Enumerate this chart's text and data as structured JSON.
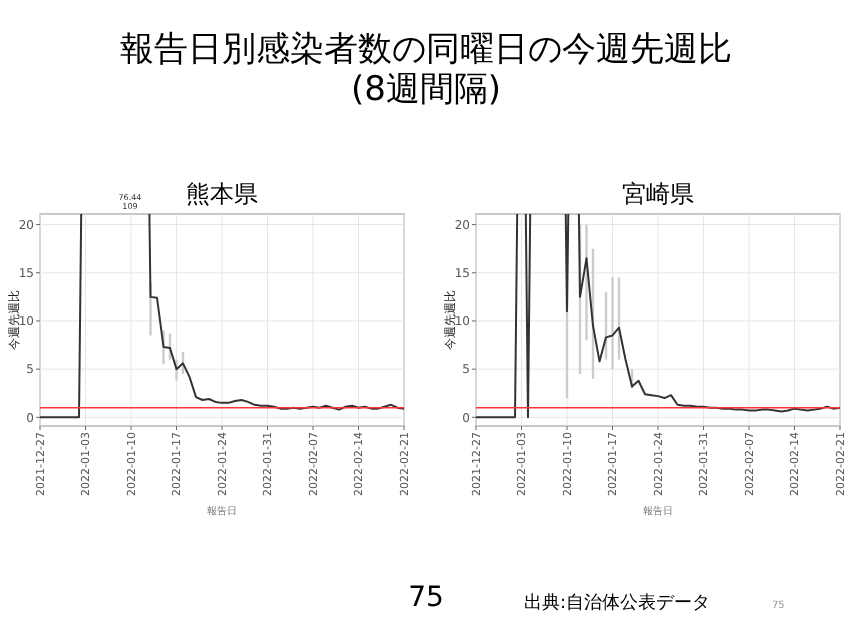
{
  "chart_data": [
    {
      "type": "other",
      "title": "報告日別感染者数の同曜日の今週先週比\n(8週間隔)",
      "annotations": [
        "75",
        "出典:自治体公表データ",
        "75"
      ]
    },
    {
      "type": "line",
      "title": "熊本県",
      "xlabel": "報告日",
      "ylabel": "今週先週比",
      "grid": true,
      "x": [
        "2021-12-27",
        "2021-12-28",
        "2021-12-29",
        "2021-12-30",
        "2021-12-31",
        "2022-01-01",
        "2022-01-02",
        "2022-01-03",
        "2022-01-04",
        "2022-01-05",
        "2022-01-06",
        "2022-01-07",
        "2022-01-08",
        "2022-01-09",
        "2022-01-10",
        "2022-01-11",
        "2022-01-12",
        "2022-01-13",
        "2022-01-14",
        "2022-01-15",
        "2022-01-16",
        "2022-01-17",
        "2022-01-18",
        "2022-01-19",
        "2022-01-20",
        "2022-01-21",
        "2022-01-22",
        "2022-01-23",
        "2022-01-24",
        "2022-01-25",
        "2022-01-26",
        "2022-01-27",
        "2022-01-28",
        "2022-01-29",
        "2022-01-30",
        "2022-01-31",
        "2022-02-01",
        "2022-02-02",
        "2022-02-03",
        "2022-02-04",
        "2022-02-05",
        "2022-02-06",
        "2022-02-07",
        "2022-02-08",
        "2022-02-09",
        "2022-02-10",
        "2022-02-11",
        "2022-02-12",
        "2022-02-13",
        "2022-02-14",
        "2022-02-15",
        "2022-02-16",
        "2022-02-17",
        "2022-02-18",
        "2022-02-19",
        "2022-02-20",
        "2022-02-21"
      ],
      "series": [
        {
          "color": "#333333",
          "values": [
            0,
            0,
            0,
            0,
            0,
            0,
            0,
            null,
            null,
            null,
            null,
            null,
            null,
            null,
            null,
            null,
            null,
            12.5,
            12.4,
            7.3,
            7.2,
            5.0,
            5.6,
            4.2,
            2.1,
            1.8,
            1.9,
            1.6,
            1.5,
            1.5,
            1.7,
            1.8,
            1.6,
            1.3,
            1.2,
            1.2,
            1.1,
            0.9,
            0.9,
            1.0,
            0.9,
            1.0,
            1.1,
            1.0,
            1.2,
            1.0,
            0.8,
            1.1,
            1.2,
            1.0,
            1.1,
            0.9,
            0.9,
            1.1,
            1.3,
            1.0,
            0.9
          ],
          "errors": [
            null,
            null,
            null,
            null,
            null,
            null,
            null,
            null,
            null,
            null,
            null,
            null,
            null,
            null,
            null,
            null,
            null,
            [
              8.5,
              14
            ],
            null,
            [
              5.5,
              9
            ],
            [
              6,
              8.7
            ],
            [
              3.8,
              6
            ],
            [
              4.5,
              6.8
            ],
            null,
            null,
            null,
            null,
            null,
            null,
            null,
            null,
            null,
            null,
            null,
            null,
            null,
            null,
            null,
            null,
            null,
            null,
            null,
            null,
            null,
            null,
            null,
            null,
            null,
            null,
            null,
            null,
            null,
            null,
            null,
            null,
            null,
            null
          ]
        }
      ],
      "xlim": [
        "2021-12-27",
        "2022-02-21"
      ],
      "xticks": [
        "2021-12-27",
        "2022-01-03",
        "2022-01-10",
        "2022-01-17",
        "2022-01-24",
        "2022-01-31",
        "2022-02-07",
        "2022-02-14",
        "2022-02-21"
      ],
      "ylim": [
        -0.9,
        21.1
      ],
      "yticks": [
        0,
        5,
        10,
        15,
        20
      ],
      "ref_lines": [
        {
          "axis": "y",
          "value": 1,
          "color": "#ff3333"
        }
      ],
      "annotations": [
        "76.44",
        "109"
      ]
    },
    {
      "type": "line",
      "title": "宮崎県",
      "xlabel": "報告日",
      "ylabel": "今週先週比",
      "grid": true,
      "x": [
        "2021-12-27",
        "2021-12-28",
        "2021-12-29",
        "2021-12-30",
        "2021-12-31",
        "2022-01-01",
        "2022-01-02",
        "2022-01-03",
        "2022-01-04",
        "2022-01-05",
        "2022-01-06",
        "2022-01-07",
        "2022-01-08",
        "2022-01-09",
        "2022-01-10",
        "2022-01-11",
        "2022-01-12",
        "2022-01-13",
        "2022-01-14",
        "2022-01-15",
        "2022-01-16",
        "2022-01-17",
        "2022-01-18",
        "2022-01-19",
        "2022-01-20",
        "2022-01-21",
        "2022-01-22",
        "2022-01-23",
        "2022-01-24",
        "2022-01-25",
        "2022-01-26",
        "2022-01-27",
        "2022-01-28",
        "2022-01-29",
        "2022-01-30",
        "2022-01-31",
        "2022-02-01",
        "2022-02-02",
        "2022-02-03",
        "2022-02-04",
        "2022-02-05",
        "2022-02-06",
        "2022-02-07",
        "2022-02-08",
        "2022-02-09",
        "2022-02-10",
        "2022-02-11",
        "2022-02-12",
        "2022-02-13",
        "2022-02-14",
        "2022-02-15",
        "2022-02-16",
        "2022-02-17",
        "2022-02-18",
        "2022-02-19",
        "2022-02-20",
        "2022-02-21"
      ],
      "series": [
        {
          "color": "#333333",
          "values": [
            0,
            0,
            0,
            0,
            0,
            0,
            0,
            null,
            0,
            null,
            null,
            null,
            null,
            null,
            11,
            null,
            12.5,
            16.5,
            9.5,
            5.8,
            8.3,
            8.5,
            9.3,
            6,
            3.2,
            3.8,
            2.4,
            2.3,
            2.2,
            2.0,
            2.3,
            1.3,
            1.2,
            1.2,
            1.1,
            1.1,
            1.0,
            1.0,
            0.9,
            0.9,
            0.8,
            0.8,
            0.7,
            0.7,
            0.8,
            0.8,
            0.7,
            0.6,
            0.7,
            0.9,
            0.8,
            0.7,
            0.8,
            0.9,
            1.1,
            0.9,
            1.0
          ],
          "errors": [
            null,
            null,
            null,
            null,
            null,
            null,
            null,
            null,
            null,
            null,
            null,
            null,
            null,
            null,
            [
              2,
              20
            ],
            null,
            [
              4.5,
              20
            ],
            [
              8,
              20
            ],
            [
              4,
              17.5
            ],
            null,
            [
              6,
              13
            ],
            [
              5,
              14.5
            ],
            [
              6,
              14.5
            ],
            null,
            [
              3,
              5
            ],
            null,
            null,
            null,
            null,
            null,
            null,
            null,
            null,
            null,
            null,
            null,
            null,
            null,
            null,
            null,
            null,
            null,
            null,
            null,
            null,
            null,
            null,
            null,
            null,
            null,
            null,
            null,
            null,
            null,
            null,
            null,
            null
          ]
        }
      ],
      "xlim": [
        "2021-12-27",
        "2022-02-21"
      ],
      "xticks": [
        "2021-12-27",
        "2022-01-03",
        "2022-01-10",
        "2022-01-17",
        "2022-01-24",
        "2022-01-31",
        "2022-02-07",
        "2022-02-14",
        "2022-02-21"
      ],
      "ylim": [
        -0.9,
        21.1
      ],
      "yticks": [
        0,
        5,
        10,
        15,
        20
      ],
      "ref_lines": [
        {
          "axis": "y",
          "value": 1,
          "color": "#ff3333"
        }
      ]
    }
  ]
}
